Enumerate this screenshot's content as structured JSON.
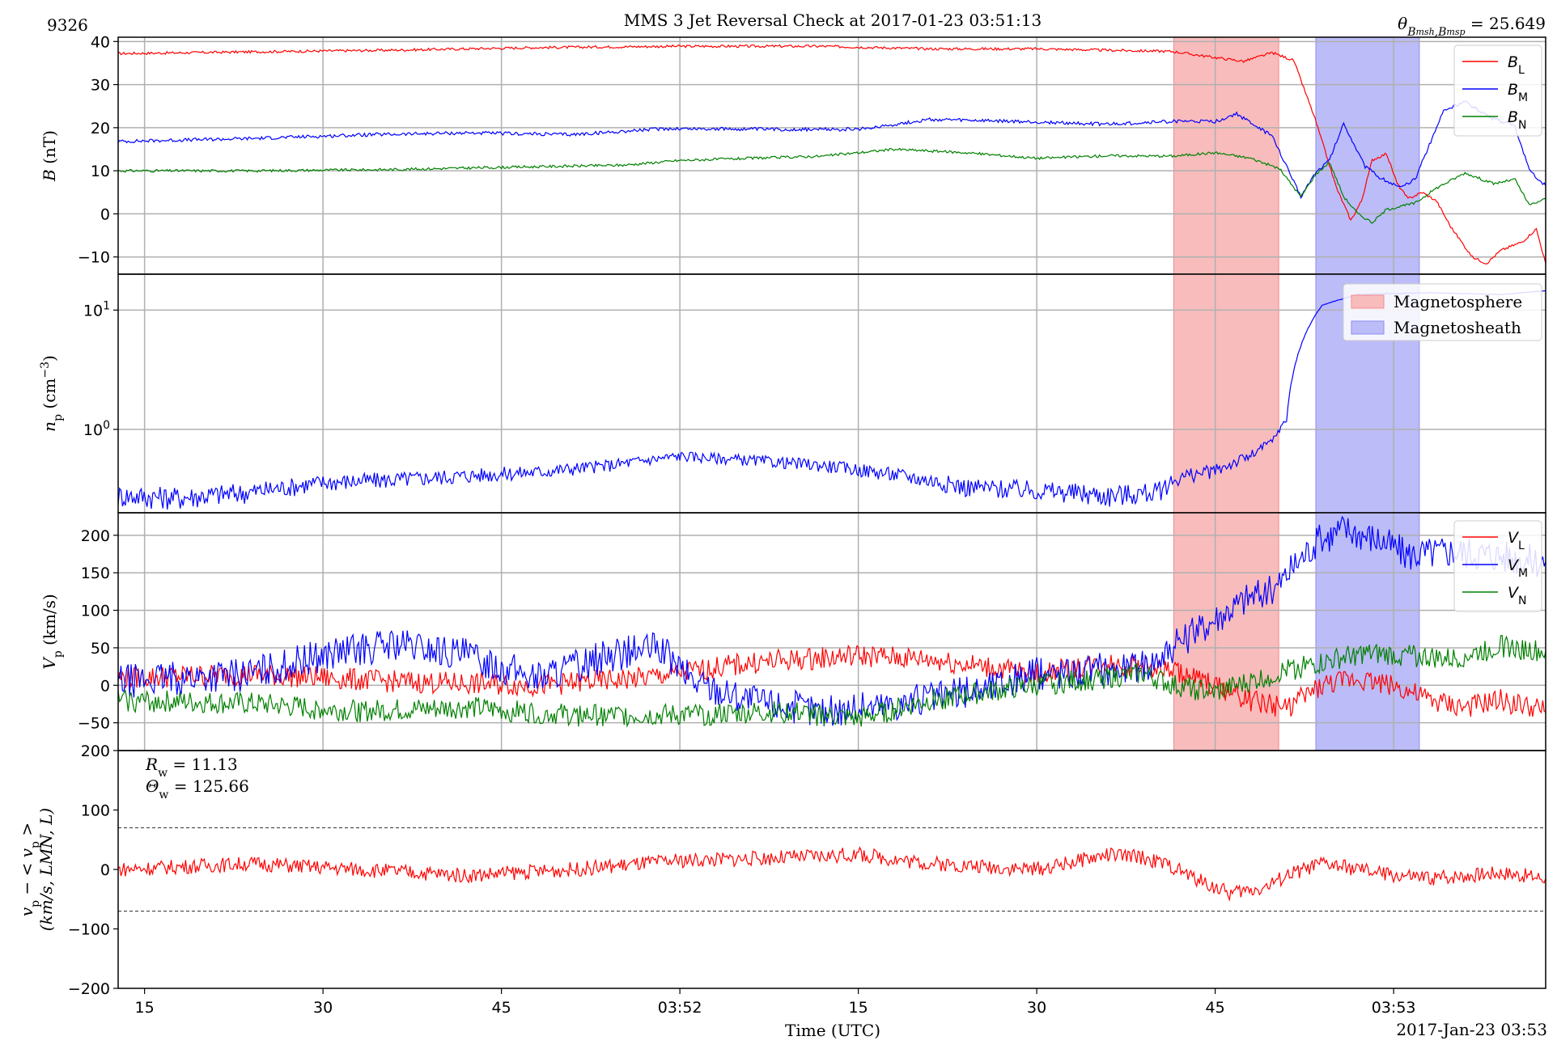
{
  "figure": {
    "id_label": "9326",
    "title": "MMS 3 Jet Reversal Check at 2017-01-23 03:51:13",
    "theta_annotation": "θB_msh,B_msp = 25.649",
    "xlabel": "Time (UTC)",
    "date_label": "2017-Jan-23 03:53",
    "colors": {
      "red": "#ff0000",
      "blue": "#0000ff",
      "green": "#008000",
      "msp_fill": "#f8bcbc",
      "msh_fill": "#bcbcf8",
      "grid": "#b0b0b0"
    }
  },
  "chart_data": [
    {
      "type": "line",
      "panel": "B",
      "ylabel": "B (nT)",
      "ylim": [
        -14,
        41
      ],
      "yticks": [
        40,
        30,
        20,
        10,
        0,
        -10
      ],
      "x_range_s": [
        -128.7,
        71.3
      ],
      "x_ticks": [
        {
          "t": -125,
          "label": "15"
        },
        {
          "t": -100,
          "label": "30"
        },
        {
          "t": -75,
          "label": "45"
        },
        {
          "t": -50,
          "label": "03:52"
        },
        {
          "t": -25,
          "label": "15"
        },
        {
          "t": 0,
          "label": "30"
        },
        {
          "t": 25,
          "label": "45"
        },
        {
          "t": 50,
          "label": "03:53"
        }
      ],
      "shaded_intervals": [
        {
          "name": "Magnetosphere",
          "from": 19.2,
          "to": 33.9
        },
        {
          "name": "Magnetosheath",
          "from": 39.1,
          "to": 53.6
        }
      ],
      "legend": [
        "B_L",
        "B_M",
        "B_N"
      ],
      "series": [
        {
          "name": "B_L",
          "color": "#ff0000",
          "points": [
            [
              -128.7,
              37.2
            ],
            [
              -110,
              37.6
            ],
            [
              -90,
              38.0
            ],
            [
              -70,
              38.6
            ],
            [
              -50,
              38.9
            ],
            [
              -30,
              38.9
            ],
            [
              -15,
              38.3
            ],
            [
              0,
              38.3
            ],
            [
              19,
              37.7
            ],
            [
              24,
              36.5
            ],
            [
              29,
              35.4
            ],
            [
              33,
              37.4
            ],
            [
              36,
              35.6
            ],
            [
              39,
              22.0
            ],
            [
              42,
              6.0
            ],
            [
              44,
              -1.5
            ],
            [
              45.5,
              3.0
            ],
            [
              47,
              12.5
            ],
            [
              49,
              14.0
            ],
            [
              50.5,
              7.0
            ],
            [
              52,
              3.5
            ],
            [
              54,
              5.0
            ],
            [
              56,
              3.0
            ],
            [
              58,
              -3.0
            ],
            [
              61,
              -10.0
            ],
            [
              63,
              -11.5
            ],
            [
              65,
              -8.5
            ],
            [
              68,
              -6.5
            ],
            [
              70,
              -3.5
            ],
            [
              71.3,
              -11.5
            ]
          ]
        },
        {
          "name": "B_M",
          "color": "#0000ff",
          "points": [
            [
              -128.7,
              16.8
            ],
            [
              -110,
              17.5
            ],
            [
              -95,
              18.3
            ],
            [
              -80,
              18.8
            ],
            [
              -65,
              18.4
            ],
            [
              -52,
              19.8
            ],
            [
              -35,
              19.6
            ],
            [
              -25,
              19.6
            ],
            [
              -15,
              21.9
            ],
            [
              0,
              21.3
            ],
            [
              10,
              20.8
            ],
            [
              19,
              21.5
            ],
            [
              25,
              21.4
            ],
            [
              28,
              23.2
            ],
            [
              33,
              18.0
            ],
            [
              37,
              4.0
            ],
            [
              39,
              9.5
            ],
            [
              41,
              12.5
            ],
            [
              43,
              21.0
            ],
            [
              46,
              11.0
            ],
            [
              48,
              8.5
            ],
            [
              51,
              6.0
            ],
            [
              53,
              8.0
            ],
            [
              55,
              16.0
            ],
            [
              57,
              24.0
            ],
            [
              60,
              26.0
            ],
            [
              64,
              22.0
            ],
            [
              67,
              20.5
            ],
            [
              69,
              10.0
            ],
            [
              71.3,
              6.5
            ]
          ]
        },
        {
          "name": "B_N",
          "color": "#008000",
          "points": [
            [
              -128.7,
              10.0
            ],
            [
              -110,
              10.0
            ],
            [
              -90,
              10.3
            ],
            [
              -75,
              10.8
            ],
            [
              -58,
              11.3
            ],
            [
              -50,
              12.4
            ],
            [
              -30,
              13.4
            ],
            [
              -20,
              15.0
            ],
            [
              -10,
              14.2
            ],
            [
              0,
              12.9
            ],
            [
              10,
              13.5
            ],
            [
              19,
              13.4
            ],
            [
              25,
              14.2
            ],
            [
              30,
              12.9
            ],
            [
              34,
              10.5
            ],
            [
              37,
              4.0
            ],
            [
              39,
              9.0
            ],
            [
              41,
              12.0
            ],
            [
              43,
              4.0
            ],
            [
              45,
              0.0
            ],
            [
              47,
              -2.0
            ],
            [
              49,
              1.0
            ],
            [
              53,
              2.5
            ],
            [
              56,
              6.0
            ],
            [
              60,
              9.5
            ],
            [
              64,
              7.0
            ],
            [
              67,
              8.0
            ],
            [
              69,
              2.0
            ],
            [
              71.3,
              3.5
            ]
          ]
        }
      ]
    },
    {
      "type": "line",
      "panel": "n",
      "ylabel": "n_p (cm^-3)",
      "yscale": "log",
      "ylim": [
        0.2,
        20
      ],
      "yticks": [
        {
          "v": 10,
          "label": "10^1"
        },
        {
          "v": 1,
          "label": "10^0"
        }
      ],
      "shaded_intervals": [
        {
          "name": "Magnetosphere",
          "from": 19.2,
          "to": 33.9
        },
        {
          "name": "Magnetosheath",
          "from": 39.1,
          "to": 53.6
        }
      ],
      "legend": [
        "Magnetosphere",
        "Magnetosheath"
      ],
      "series": [
        {
          "name": "n_p",
          "color": "#0000ff",
          "points": [
            [
              -128.7,
              0.28
            ],
            [
              -120,
              0.27
            ],
            [
              -110,
              0.3
            ],
            [
              -100,
              0.36
            ],
            [
              -90,
              0.38
            ],
            [
              -80,
              0.41
            ],
            [
              -70,
              0.44
            ],
            [
              -60,
              0.5
            ],
            [
              -50,
              0.6
            ],
            [
              -40,
              0.55
            ],
            [
              -30,
              0.5
            ],
            [
              -20,
              0.42
            ],
            [
              -10,
              0.33
            ],
            [
              0,
              0.31
            ],
            [
              10,
              0.28
            ],
            [
              17,
              0.3
            ],
            [
              20,
              0.4
            ],
            [
              25,
              0.45
            ],
            [
              30,
              0.6
            ],
            [
              33,
              0.8
            ],
            [
              35,
              1.2
            ],
            [
              37,
              5.0
            ],
            [
              40,
              11.0
            ],
            [
              45,
              13.5
            ],
            [
              55,
              14.0
            ],
            [
              65,
              13.5
            ],
            [
              71.3,
              14.5
            ]
          ]
        }
      ]
    },
    {
      "type": "line",
      "panel": "V",
      "ylabel": "V_p (km/s)",
      "ylim": [
        -87,
        230
      ],
      "yticks": [
        200,
        150,
        100,
        50,
        0,
        -50
      ],
      "legend": [
        "V_L",
        "V_M",
        "V_N"
      ],
      "shaded_intervals": [
        {
          "name": "Magnetosphere",
          "from": 19.2,
          "to": 33.9
        },
        {
          "name": "Magnetosheath",
          "from": 39.1,
          "to": 53.6
        }
      ],
      "series": [
        {
          "name": "V_L",
          "color": "#ff0000",
          "points": [
            [
              -128.7,
              10
            ],
            [
              -110,
              15
            ],
            [
              -90,
              5
            ],
            [
              -70,
              0
            ],
            [
              -55,
              10
            ],
            [
              -40,
              30
            ],
            [
              -25,
              40
            ],
            [
              -15,
              35
            ],
            [
              0,
              15
            ],
            [
              10,
              30
            ],
            [
              19,
              20
            ],
            [
              25,
              0
            ],
            [
              30,
              -20
            ],
            [
              35,
              -30
            ],
            [
              40,
              0
            ],
            [
              45,
              10
            ],
            [
              50,
              0
            ],
            [
              55,
              -20
            ],
            [
              60,
              -30
            ],
            [
              65,
              -20
            ],
            [
              71.3,
              -35
            ]
          ]
        },
        {
          "name": "V_M",
          "color": "#0000ff",
          "points": [
            [
              -128.7,
              5
            ],
            [
              -110,
              15
            ],
            [
              -100,
              40
            ],
            [
              -90,
              55
            ],
            [
              -80,
              40
            ],
            [
              -70,
              10
            ],
            [
              -60,
              40
            ],
            [
              -53,
              50
            ],
            [
              -48,
              5
            ],
            [
              -40,
              -20
            ],
            [
              -30,
              -35
            ],
            [
              -20,
              -25
            ],
            [
              -10,
              -10
            ],
            [
              0,
              15
            ],
            [
              15,
              25
            ],
            [
              19,
              50
            ],
            [
              25,
              90
            ],
            [
              30,
              120
            ],
            [
              33,
              125
            ],
            [
              36,
              160
            ],
            [
              39,
              190
            ],
            [
              43,
              210
            ],
            [
              48,
              195
            ],
            [
              52,
              175
            ],
            [
              58,
              180
            ],
            [
              64,
              175
            ],
            [
              71.3,
              165
            ]
          ]
        },
        {
          "name": "V_N",
          "color": "#008000",
          "points": [
            [
              -128.7,
              -20
            ],
            [
              -110,
              -25
            ],
            [
              -95,
              -35
            ],
            [
              -80,
              -30
            ],
            [
              -65,
              -40
            ],
            [
              -50,
              -40
            ],
            [
              -35,
              -35
            ],
            [
              -25,
              -45
            ],
            [
              -15,
              -20
            ],
            [
              0,
              0
            ],
            [
              15,
              15
            ],
            [
              19,
              0
            ],
            [
              25,
              -10
            ],
            [
              30,
              5
            ],
            [
              35,
              20
            ],
            [
              40,
              30
            ],
            [
              45,
              42
            ],
            [
              52,
              40
            ],
            [
              58,
              35
            ],
            [
              65,
              52
            ],
            [
              71.3,
              45
            ]
          ]
        }
      ]
    },
    {
      "type": "line",
      "panel": "dV",
      "ylabel": "v_p - <v_p> (km/s, LMN, L)",
      "ylim": [
        -200,
        200
      ],
      "yticks": [
        200,
        100,
        0,
        -100,
        -200
      ],
      "annotations": [
        "R_w = 11.13",
        "Θ_w = 125.66"
      ],
      "threshold_lines": [
        70,
        -70
      ],
      "series": [
        {
          "name": "V_L residual",
          "color": "#ff0000",
          "points": [
            [
              -128.7,
              0
            ],
            [
              -110,
              10
            ],
            [
              -95,
              0
            ],
            [
              -80,
              -10
            ],
            [
              -65,
              0
            ],
            [
              -50,
              15
            ],
            [
              -35,
              20
            ],
            [
              -25,
              25
            ],
            [
              -15,
              10
            ],
            [
              0,
              0
            ],
            [
              10,
              25
            ],
            [
              15,
              20
            ],
            [
              19,
              5
            ],
            [
              23,
              -20
            ],
            [
              27,
              -40
            ],
            [
              32,
              -30
            ],
            [
              35,
              -10
            ],
            [
              40,
              10
            ],
            [
              45,
              0
            ],
            [
              50,
              -10
            ],
            [
              55,
              -15
            ],
            [
              60,
              -10
            ],
            [
              65,
              -5
            ],
            [
              71.3,
              -15
            ]
          ]
        }
      ]
    }
  ]
}
